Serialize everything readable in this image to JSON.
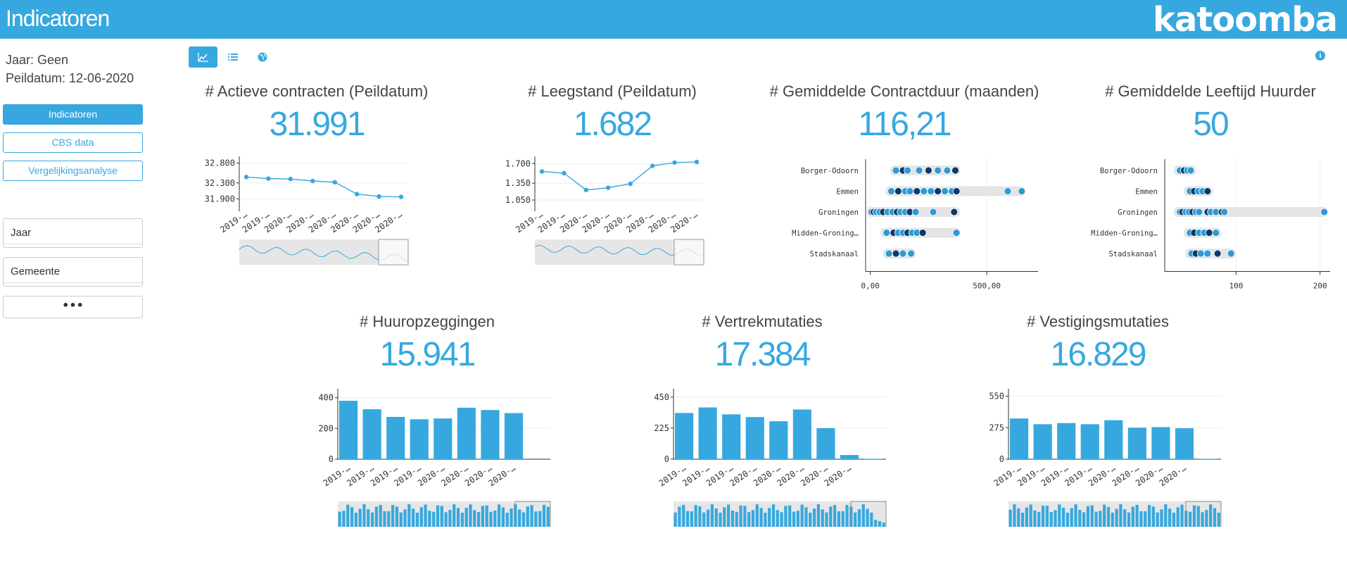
{
  "header": {
    "title": "Indicatoren",
    "logo": "katoomba"
  },
  "sidebar": {
    "year_line": "Jaar: Geen",
    "date_line": "Peildatum: 12-06-2020",
    "buttons": [
      {
        "label": "Indicatoren",
        "active": true
      },
      {
        "label": "CBS data",
        "active": false
      },
      {
        "label": "Vergelijkingsanalyse",
        "active": false
      }
    ],
    "filters": [
      {
        "label": "Jaar"
      },
      {
        "label": "Gemeente"
      }
    ],
    "more_label": "•••"
  },
  "toolbar": {
    "tabs": [
      {
        "icon": "line-chart-icon",
        "active": true
      },
      {
        "icon": "list-icon",
        "active": false
      },
      {
        "icon": "globe-icon",
        "active": false
      }
    ],
    "info_icon": "info-icon"
  },
  "panels": [
    {
      "title": "# Actieve contracten (Peildatum)",
      "value": "31.991"
    },
    {
      "title": "# Leegstand (Peildatum)",
      "value": "1.682"
    },
    {
      "title": "# Gemiddelde Contractduur (maanden)",
      "value": "116,21"
    },
    {
      "title": "# Gemiddelde Leeftijd Huurder",
      "value": "50"
    },
    {
      "title": "# Huuropzeggingen",
      "value": "15.941"
    },
    {
      "title": "# Vertrekmutaties",
      "value": "17.384"
    },
    {
      "title": "# Vestigingsmutaties",
      "value": "16.829"
    }
  ],
  "chart_data": [
    {
      "type": "line",
      "title": "# Actieve contracten (Peildatum)",
      "categories": [
        "2019-…",
        "2019-…",
        "2020-…",
        "2020-…",
        "2020-…",
        "2020-…",
        "2020-…",
        "2020-…"
      ],
      "values": [
        32450,
        32410,
        32400,
        32350,
        32320,
        32020,
        31960,
        31950
      ],
      "yticks": [
        "32.800",
        "32.300",
        "31.900"
      ],
      "ytick_values": [
        32800,
        32300,
        31900
      ],
      "ylim": [
        31800,
        32900
      ],
      "accent": "#36a8df"
    },
    {
      "type": "line",
      "title": "# Leegstand (Peildatum)",
      "categories": [
        "2019-…",
        "2019-…",
        "2020-…",
        "2020-…",
        "2020-…",
        "2020-…",
        "2020-…",
        "2020-…"
      ],
      "values": [
        1560,
        1530,
        1230,
        1270,
        1340,
        1660,
        1720,
        1730
      ],
      "yticks": [
        "1.700",
        "1.350",
        "1.050"
      ],
      "ytick_values": [
        1700,
        1350,
        1050
      ],
      "ylim": [
        1000,
        1780
      ],
      "accent": "#36a8df"
    },
    {
      "type": "scatter",
      "title": "# Gemiddelde Contractduur (maanden)",
      "categories": [
        "Borger-Odoorn",
        "Emmen",
        "Groningen",
        "Midden-Groning…",
        "Stadskanaal"
      ],
      "xticks": [
        "0,00",
        "500,00"
      ],
      "xtick_values": [
        0,
        500
      ],
      "xlim": [
        -20,
        720
      ],
      "points": [
        [
          110,
          140,
          160,
          210,
          250,
          290,
          330,
          365
        ],
        [
          90,
          120,
          150,
          170,
          200,
          230,
          260,
          290,
          320,
          350,
          370,
          590,
          650
        ],
        [
          5,
          15,
          25,
          40,
          55,
          75,
          95,
          115,
          130,
          150,
          170,
          195,
          270,
          360
        ],
        [
          70,
          100,
          120,
          140,
          160,
          180,
          200,
          225,
          370
        ],
        [
          80,
          110,
          140,
          175
        ]
      ],
      "ranges": [
        [
          100,
          370
        ],
        [
          80,
          650
        ],
        [
          0,
          370
        ],
        [
          60,
          370
        ],
        [
          70,
          180
        ]
      ]
    },
    {
      "type": "scatter",
      "title": "# Gemiddelde Leeftijd Huurder",
      "categories": [
        "Borger-Odoorn",
        "Emmen",
        "Groningen",
        "Midden-Groning…",
        "Stadskanaal"
      ],
      "xticks": [
        "100",
        "200"
      ],
      "xtick_values": [
        100,
        200
      ],
      "xlim": [
        15,
        212
      ],
      "points": [
        [
          33,
          38,
          42,
          46
        ],
        [
          45,
          50,
          55,
          60,
          66
        ],
        [
          33,
          36,
          40,
          44,
          48,
          52,
          56,
          66,
          70,
          76,
          83,
          86,
          205
        ],
        [
          45,
          50,
          56,
          62,
          68,
          76
        ],
        [
          47,
          52,
          58,
          66,
          78,
          94
        ]
      ],
      "ranges": [
        [
          30,
          48
        ],
        [
          42,
          68
        ],
        [
          30,
          205
        ],
        [
          42,
          78
        ],
        [
          44,
          95
        ]
      ]
    },
    {
      "type": "bar",
      "title": "# Huuropzeggingen",
      "categories": [
        "2019-…",
        "2019-…",
        "2019-…",
        "2019-…",
        "2020-…",
        "2020-…",
        "2020-…",
        "2020-…"
      ],
      "values": [
        380,
        325,
        275,
        260,
        265,
        335,
        320,
        300
      ],
      "extra_values": [
        0
      ],
      "yticks": [
        "400",
        "200",
        "0"
      ],
      "ytick_values": [
        400,
        200,
        0
      ],
      "ylim": [
        0,
        440
      ]
    },
    {
      "type": "bar",
      "title": "# Vertrekmutaties",
      "categories": [
        "2019-…",
        "2019-…",
        "2019-…",
        "2020-…",
        "2020-…",
        "2020-…",
        "2020-…",
        "2020-…"
      ],
      "values": [
        335,
        375,
        325,
        305,
        275,
        360,
        225,
        30
      ],
      "extra_values": [
        3
      ],
      "yticks": [
        "450",
        "225",
        "0"
      ],
      "ytick_values": [
        450,
        225,
        0
      ],
      "ylim": [
        0,
        490
      ]
    },
    {
      "type": "bar",
      "title": "# Vestigingsmutaties",
      "categories": [
        "2019-…",
        "2019-…",
        "2019-…",
        "2019-…",
        "2020-…",
        "2020-…",
        "2020-…",
        "2020-…"
      ],
      "values": [
        355,
        305,
        315,
        305,
        340,
        275,
        280,
        270
      ],
      "extra_values": [
        3
      ],
      "yticks": [
        "550",
        "275",
        "0"
      ],
      "ytick_values": [
        550,
        275,
        0
      ],
      "ylim": [
        0,
        590
      ]
    }
  ]
}
